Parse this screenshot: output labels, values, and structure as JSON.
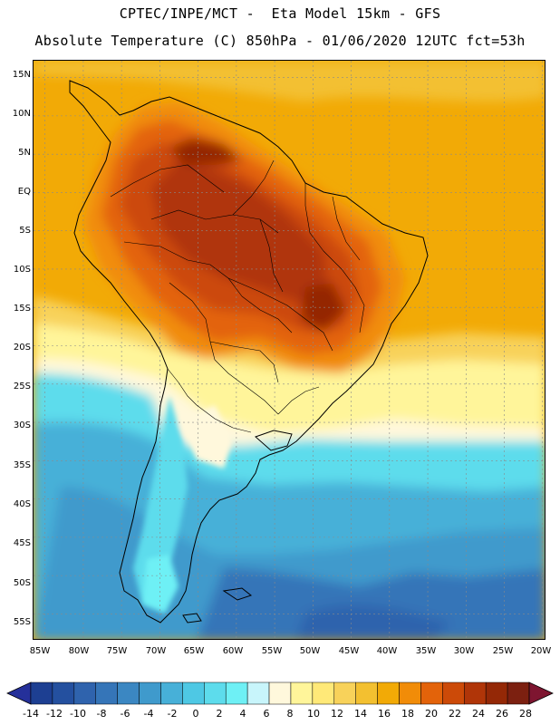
{
  "header": {
    "line1": "CPTEC/INPE/MCT -  Eta Model 15km - GFS",
    "line2": "Absolute Temperature (C) 850hPa - 01/06/2020 12UTC fct=53h"
  },
  "chart_data": {
    "type": "heatmap",
    "title": "Absolute Temperature (C) 850hPa",
    "model": "Eta Model 15km - GFS",
    "date": "01/06/2020 12UTC",
    "forecast": "fct=53h",
    "lat_ticks": [
      "15N",
      "10N",
      "5N",
      "EQ",
      "5S",
      "10S",
      "15S",
      "20S",
      "25S",
      "30S",
      "35S",
      "40S",
      "45S",
      "50S",
      "55S"
    ],
    "lon_ticks": [
      "85W",
      "80W",
      "75W",
      "70W",
      "65W",
      "60W",
      "55W",
      "50W",
      "45W",
      "40W",
      "35W",
      "30W",
      "25W",
      "20W"
    ],
    "colorbar": {
      "labels": [
        "-14",
        "-12",
        "-10",
        "-8",
        "-6",
        "-4",
        "-2",
        "0",
        "2",
        "4",
        "6",
        "8",
        "10",
        "12",
        "14",
        "16",
        "18",
        "20",
        "22",
        "24",
        "26",
        "28"
      ],
      "colors": [
        "#1d3f92",
        "#24509f",
        "#2f63ad",
        "#3575b8",
        "#3b87c2",
        "#3f9acc",
        "#47b0d8",
        "#4ec8e4",
        "#5ddcec",
        "#6ef0f5",
        "#c8f5fb",
        "#fff8dc",
        "#fff59a",
        "#ffe978",
        "#f8d25a",
        "#f3c030",
        "#f2aa06",
        "#f18c08",
        "#e3630a",
        "#cc4a08",
        "#b03508",
        "#942806",
        "#7c2010"
      ],
      "left_cap": "#25309a",
      "right_cap": "#7e1530"
    }
  },
  "icons": {
    "colorbar_left_arrow": "triangle-left",
    "colorbar_right_arrow": "triangle-right"
  }
}
